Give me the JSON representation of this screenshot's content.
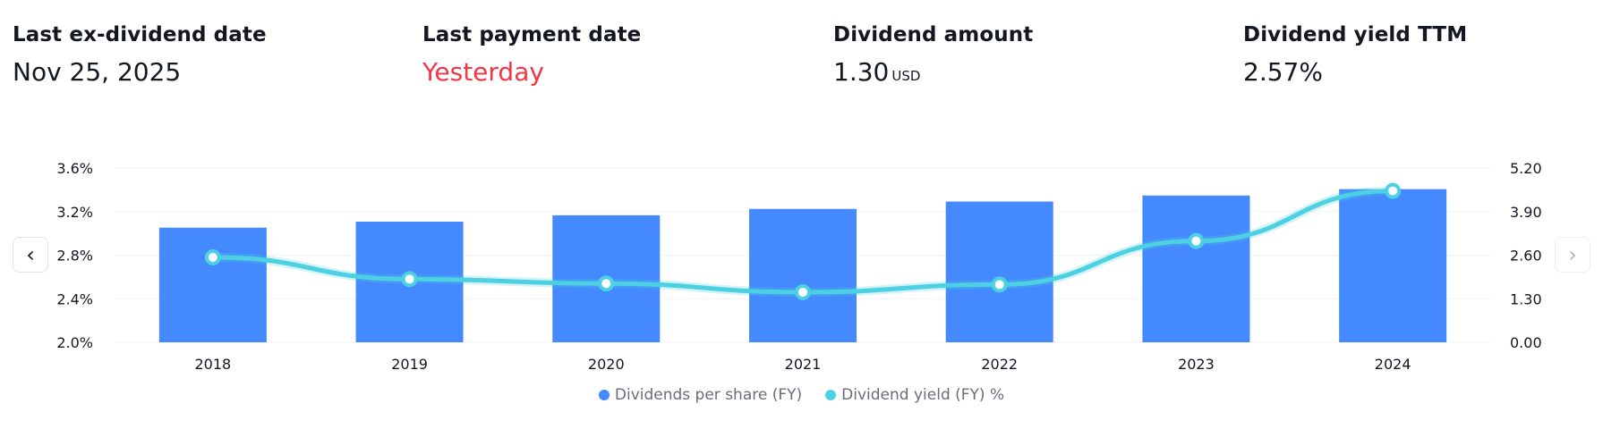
{
  "stats": [
    {
      "label": "Last ex-dividend date",
      "value": "Nov 25, 2025",
      "unit": ""
    },
    {
      "label": "Last payment date",
      "value": "Yesterday",
      "unit": ""
    },
    {
      "label": "Dividend amount",
      "value": "1.30",
      "unit": "USD"
    },
    {
      "label": "Dividend yield TTM",
      "value": "2.57%",
      "unit": ""
    }
  ],
  "nav": {
    "prev_icon": "chevron-left-icon",
    "next_icon": "chevron-right-icon",
    "prev_glyph": "‹",
    "next_glyph": "›"
  },
  "colors": {
    "bars": "#4589ff",
    "line": "#4dd0e1",
    "highlight": "#f23645"
  },
  "chart_data": {
    "type": "bar",
    "categories": [
      "2018",
      "2019",
      "2020",
      "2021",
      "2022",
      "2023",
      "2024"
    ],
    "series": [
      {
        "name": "Dividends per share (FY)",
        "type": "bar",
        "axis": "right",
        "values": [
          3.42,
          3.6,
          3.79,
          3.98,
          4.2,
          4.38,
          4.57
        ]
      },
      {
        "name": "Dividend yield (FY) %",
        "type": "line",
        "axis": "left",
        "values": [
          2.78,
          2.58,
          2.54,
          2.46,
          2.53,
          2.93,
          3.39
        ]
      }
    ],
    "left_axis": {
      "ylim": [
        2.0,
        3.6
      ],
      "ticks": [
        "3.6%",
        "3.2%",
        "2.8%",
        "2.4%",
        "2.0%"
      ]
    },
    "right_axis": {
      "ylim": [
        0.0,
        5.2
      ],
      "ticks": [
        "5.20",
        "3.90",
        "2.60",
        "1.30",
        "0.00"
      ]
    },
    "grid": true,
    "legend": "bottom-center"
  }
}
